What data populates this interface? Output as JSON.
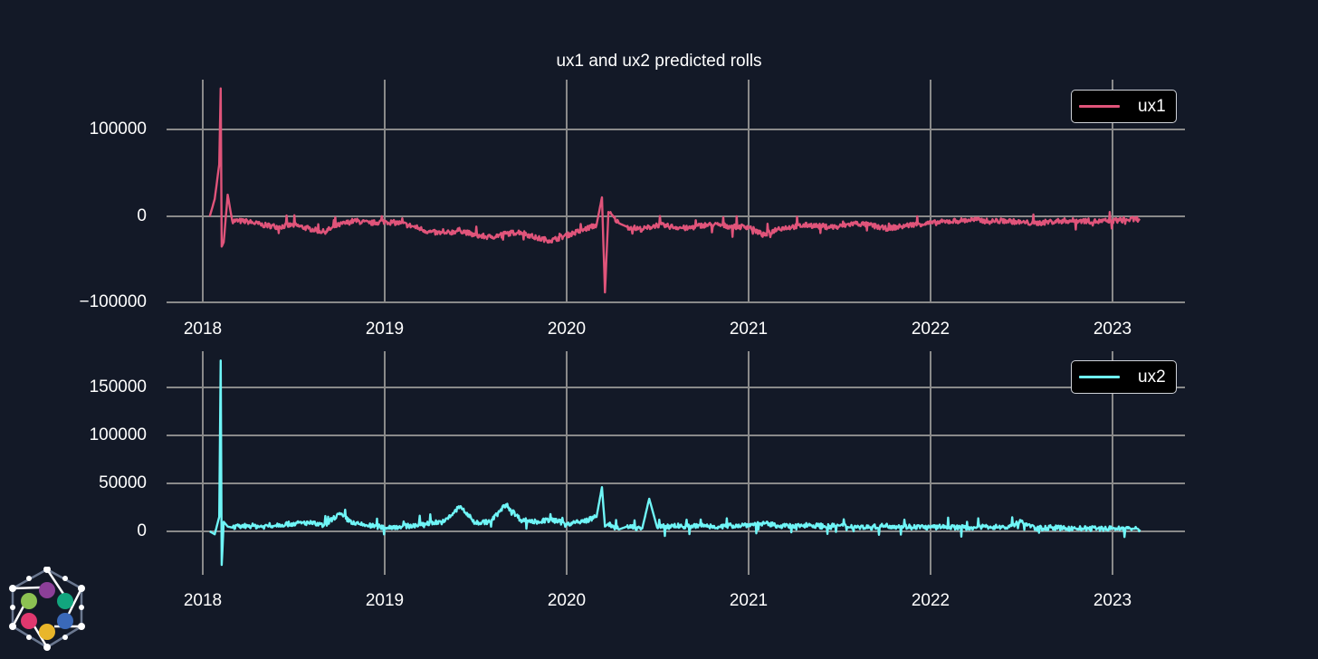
{
  "title": "ux1 and ux2 predicted rolls",
  "colors": {
    "background": "#131927",
    "grid": "#8a8a8a",
    "ux1": "#e0547a",
    "ux2": "#6ff5f7",
    "text": "#ffffff",
    "legend_bg": "#000000",
    "legend_border": "#cfd2d8"
  },
  "top_chart": {
    "legend": "ux1",
    "yticks": [
      "100000",
      "0",
      "−100000"
    ],
    "xticks": [
      "2018",
      "2019",
      "2020",
      "2021",
      "2022",
      "2023"
    ]
  },
  "bottom_chart": {
    "legend": "ux2",
    "yticks": [
      "150000",
      "100000",
      "50000",
      "0"
    ],
    "xticks": [
      "2018",
      "2019",
      "2020",
      "2021",
      "2022",
      "2023"
    ]
  },
  "logo": {
    "name": "hexagon-network-logo",
    "dot_colors": [
      "#8c3f98",
      "#12a57e",
      "#3a69b9",
      "#e9b62a",
      "#e0386f",
      "#8cc152"
    ]
  },
  "chart_data": [
    {
      "type": "line",
      "title": "ux1 and ux2 predicted rolls",
      "xlabel": "",
      "ylabel": "",
      "series": [
        {
          "name": "ux1",
          "color": "#e0547a"
        }
      ],
      "xlim": [
        "2017-11",
        "2023-06"
      ],
      "ylim": [
        -100000,
        155000
      ],
      "yticks": [
        100000,
        0,
        -100000
      ],
      "xticks": [
        2018,
        2019,
        2020,
        2021,
        2022,
        2023
      ],
      "grid": true,
      "legend_position": "upper right",
      "x": [
        "2018-01-15",
        "2018-01-25",
        "2018-02-03",
        "2018-02-06",
        "2018-02-08",
        "2018-02-12",
        "2018-02-20",
        "2018-03-01",
        "2018-04-01",
        "2018-05-01",
        "2018-06-01",
        "2018-07-01",
        "2018-08-01",
        "2018-09-01",
        "2018-10-01",
        "2018-11-01",
        "2018-12-01",
        "2019-01-01",
        "2019-02-01",
        "2019-03-01",
        "2019-04-01",
        "2019-05-01",
        "2019-06-01",
        "2019-07-01",
        "2019-08-01",
        "2019-09-01",
        "2019-10-01",
        "2019-11-01",
        "2019-12-01",
        "2020-01-01",
        "2020-02-01",
        "2020-03-01",
        "2020-03-12",
        "2020-03-18",
        "2020-03-25",
        "2020-04-15",
        "2020-05-01",
        "2020-06-01",
        "2020-07-01",
        "2020-08-01",
        "2020-09-01",
        "2020-10-01",
        "2020-11-01",
        "2020-12-01",
        "2021-01-01",
        "2021-02-01",
        "2021-03-01",
        "2021-04-01",
        "2021-05-01",
        "2021-06-01",
        "2021-07-01",
        "2021-08-01",
        "2021-09-01",
        "2021-10-01",
        "2021-11-01",
        "2021-12-01",
        "2022-01-01",
        "2022-02-01",
        "2022-03-01",
        "2022-04-01",
        "2022-05-01",
        "2022-06-01",
        "2022-07-01",
        "2022-08-01",
        "2022-09-01",
        "2022-10-01",
        "2022-11-01",
        "2022-12-01",
        "2023-01-01",
        "2023-02-01",
        "2023-02-25"
      ],
      "values": [
        0,
        20000,
        60000,
        148000,
        -35000,
        -30000,
        25000,
        -5000,
        -6000,
        -10000,
        -12000,
        -10000,
        -14000,
        -18000,
        -10000,
        -5000,
        -8000,
        -6000,
        -8000,
        -12000,
        -18000,
        -20000,
        -16000,
        -22000,
        -24000,
        -20000,
        -18000,
        -25000,
        -28000,
        -22000,
        -16000,
        -10000,
        22000,
        -88000,
        5000,
        -8000,
        -12000,
        -15000,
        -10000,
        -12000,
        -14000,
        -10000,
        -10000,
        -12000,
        -12000,
        -22000,
        -14000,
        -12000,
        -10000,
        -12000,
        -12000,
        -8000,
        -10000,
        -14000,
        -12000,
        -9000,
        -8000,
        -6000,
        -5000,
        -4000,
        -6000,
        -5000,
        -7000,
        -8000,
        -6000,
        -5000,
        -5000,
        -6000,
        -5000,
        -4000,
        -3000
      ]
    },
    {
      "type": "line",
      "title": "",
      "xlabel": "",
      "ylabel": "",
      "series": [
        {
          "name": "ux2",
          "color": "#6ff5f7"
        }
      ],
      "xlim": [
        "2017-11",
        "2023-06"
      ],
      "ylim": [
        -45000,
        190000
      ],
      "yticks": [
        150000,
        100000,
        50000,
        0
      ],
      "xticks": [
        2018,
        2019,
        2020,
        2021,
        2022,
        2023
      ],
      "grid": true,
      "legend_position": "upper right",
      "x": [
        "2018-01-15",
        "2018-01-25",
        "2018-02-03",
        "2018-02-06",
        "2018-02-08",
        "2018-02-12",
        "2018-02-20",
        "2018-03-01",
        "2018-04-01",
        "2018-05-01",
        "2018-06-01",
        "2018-07-01",
        "2018-08-01",
        "2018-09-01",
        "2018-10-01",
        "2018-11-01",
        "2018-12-01",
        "2019-01-01",
        "2019-02-01",
        "2019-03-01",
        "2019-04-01",
        "2019-05-01",
        "2019-06-01",
        "2019-07-01",
        "2019-08-01",
        "2019-09-01",
        "2019-10-01",
        "2019-11-01",
        "2019-12-01",
        "2020-01-01",
        "2020-02-01",
        "2020-03-01",
        "2020-03-12",
        "2020-03-18",
        "2020-03-25",
        "2020-04-15",
        "2020-05-01",
        "2020-06-01",
        "2020-06-15",
        "2020-07-01",
        "2020-08-01",
        "2020-09-01",
        "2020-10-01",
        "2020-11-01",
        "2020-12-01",
        "2021-01-01",
        "2021-02-01",
        "2021-03-01",
        "2021-04-01",
        "2021-05-01",
        "2021-06-01",
        "2021-07-01",
        "2021-08-01",
        "2021-09-01",
        "2021-10-01",
        "2021-11-01",
        "2021-12-01",
        "2022-01-01",
        "2022-02-01",
        "2022-03-01",
        "2022-04-01",
        "2022-05-01",
        "2022-06-01",
        "2022-07-01",
        "2022-08-01",
        "2022-09-01",
        "2022-10-01",
        "2022-11-01",
        "2022-12-01",
        "2023-01-01",
        "2023-02-01",
        "2023-02-25"
      ],
      "values": [
        0,
        -3000,
        15000,
        178000,
        -35000,
        10000,
        5000,
        4000,
        6000,
        5000,
        7000,
        8000,
        9000,
        6000,
        18000,
        8000,
        6000,
        4000,
        5000,
        6000,
        9000,
        10000,
        26000,
        9000,
        10000,
        28000,
        12000,
        10000,
        12000,
        8000,
        10000,
        15000,
        46000,
        5000,
        8000,
        2000,
        5000,
        3000,
        34000,
        4000,
        6000,
        5000,
        6000,
        5000,
        6000,
        7000,
        8000,
        6000,
        5000,
        7000,
        5000,
        6000,
        5000,
        4000,
        6000,
        5000,
        5000,
        4000,
        5000,
        4000,
        4000,
        5000,
        4000,
        10000,
        3000,
        4000,
        3000,
        3000,
        3000,
        3000,
        3000,
        2000
      ]
    }
  ]
}
